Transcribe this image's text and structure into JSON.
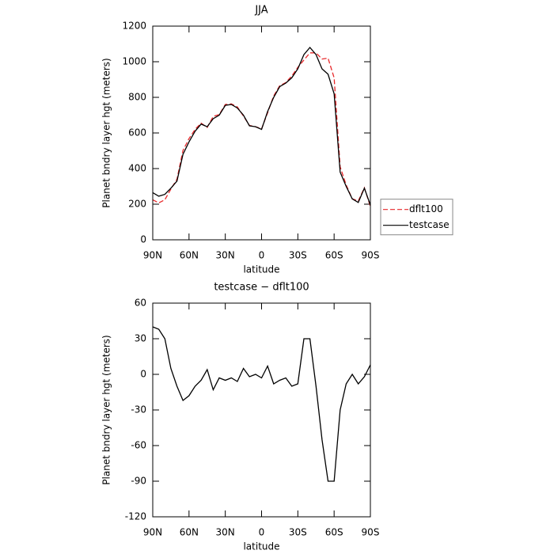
{
  "chart_data": [
    {
      "type": "line",
      "title": "JJA",
      "x_label": "latitude",
      "y_label": "Planet bndry layer hgt (meters)",
      "x": [
        90,
        85,
        80,
        75,
        70,
        65,
        60,
        55,
        50,
        45,
        40,
        35,
        30,
        25,
        20,
        15,
        10,
        5,
        0,
        -5,
        -10,
        -15,
        -20,
        -25,
        -30,
        -35,
        -40,
        -45,
        -50,
        -55,
        -60,
        -65,
        -70,
        -75,
        -80,
        -85,
        -90
      ],
      "series": [
        {
          "name": "dflt100",
          "color": "#e8282a",
          "dash": true,
          "values": [
            225,
            207,
            225,
            285,
            340,
            502,
            568,
            620,
            655,
            631,
            693,
            703,
            760,
            763,
            746,
            695,
            642,
            635,
            623,
            713,
            808,
            865,
            883,
            920,
            968,
            1010,
            1050,
            1050,
            1015,
            1020,
            910,
            410,
            308,
            230,
            218,
            292,
            187
          ]
        },
        {
          "name": "testcase",
          "color": "#000000",
          "dash": false,
          "values": [
            265,
            245,
            255,
            290,
            330,
            480,
            550,
            610,
            650,
            635,
            680,
            700,
            755,
            760,
            740,
            700,
            640,
            635,
            620,
            720,
            800,
            860,
            880,
            910,
            960,
            1040,
            1080,
            1040,
            960,
            930,
            820,
            380,
            300,
            230,
            210,
            290,
            195
          ]
        }
      ],
      "xlim": [
        90,
        -90
      ],
      "xticks": [
        {
          "value": 90,
          "label": "90N"
        },
        {
          "value": 60,
          "label": "60N"
        },
        {
          "value": 30,
          "label": "30N"
        },
        0,
        {
          "value": -30,
          "label": "30S"
        },
        {
          "value": -60,
          "label": "60S"
        },
        {
          "value": -90,
          "label": "90S"
        }
      ],
      "ylim": [
        0,
        1200
      ],
      "yticks": [
        0,
        200,
        400,
        600,
        800,
        1000,
        1200
      ],
      "legend": "right"
    },
    {
      "type": "line",
      "title": "testcase − dflt100",
      "x_label": "latitude",
      "y_label": "Planet bndry layer hgt (meters)",
      "x": [
        90,
        85,
        80,
        75,
        70,
        65,
        60,
        55,
        50,
        45,
        40,
        35,
        30,
        25,
        20,
        15,
        10,
        5,
        0,
        -5,
        -10,
        -15,
        -20,
        -25,
        -30,
        -35,
        -40,
        -45,
        -50,
        -55,
        -60,
        -65,
        -70,
        -75,
        -80,
        -85,
        -90
      ],
      "color": "#000000",
      "values": [
        40,
        38,
        30,
        5,
        -10,
        -22,
        -18,
        -10,
        -5,
        4,
        -13,
        -3,
        -5,
        -3,
        -6,
        5,
        -2,
        0,
        -3,
        7,
        -8,
        -5,
        -3,
        -10,
        -8,
        30,
        30,
        -10,
        -55,
        -90,
        -90,
        -30,
        -8,
        0,
        -8,
        -2,
        8
      ],
      "xlim": [
        90,
        -90
      ],
      "xticks": [
        {
          "value": 90,
          "label": "90N"
        },
        {
          "value": 60,
          "label": "60N"
        },
        {
          "value": 30,
          "label": "30N"
        },
        0,
        {
          "value": -30,
          "label": "30S"
        },
        {
          "value": -60,
          "label": "60S"
        },
        {
          "value": -90,
          "label": "90S"
        }
      ],
      "ylim": [
        -120,
        60
      ],
      "yticks": [
        -120,
        -90,
        -60,
        -30,
        0,
        30,
        60
      ]
    }
  ]
}
